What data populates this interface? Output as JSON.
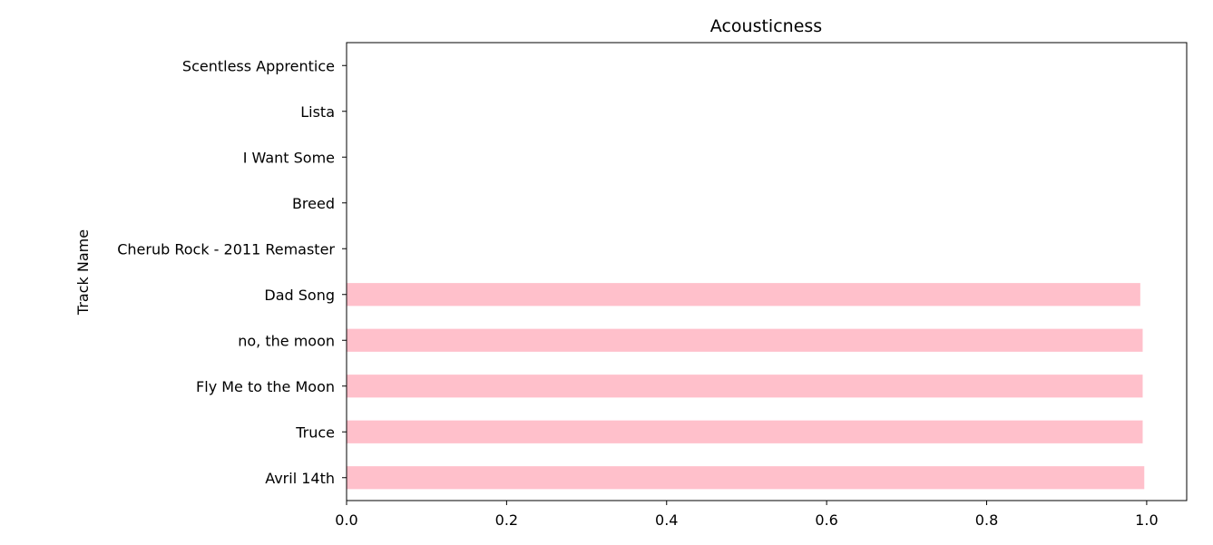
{
  "chart_data": {
    "type": "bar",
    "orientation": "horizontal",
    "title": "Acousticness",
    "xlabel": "",
    "ylabel": "Track Name",
    "categories": [
      "Avril 14th",
      "Truce",
      "Fly Me to the Moon",
      "no, the moon",
      "Dad Song",
      "Cherub Rock - 2011 Remaster",
      "Breed",
      "I Want Some",
      "Lista",
      "Scentless Apprentice"
    ],
    "values": [
      0.997,
      0.995,
      0.995,
      0.995,
      0.992,
      0.0,
      0.0,
      0.0,
      0.0,
      0.0
    ],
    "xlim": [
      0.0,
      1.05
    ],
    "xticks": [
      "0.0",
      "0.2",
      "0.4",
      "0.6",
      "0.8",
      "1.0"
    ],
    "grid": false,
    "legend": "none",
    "bar_color": "#ffc0cb"
  }
}
